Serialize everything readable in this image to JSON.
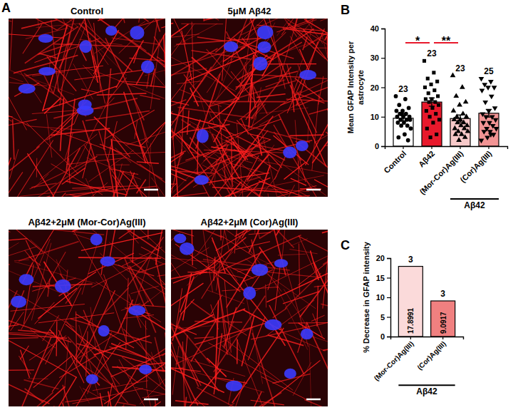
{
  "image_panels": {
    "letter": "A",
    "titles": [
      "Control",
      "5μM Aβ42",
      "Aβ42+2μM (Mor-Cor)Ag(III)",
      "Aβ42+2μM (Cor)Ag(III)"
    ]
  },
  "chart_data": [
    {
      "panel": "B",
      "type": "bar",
      "y_label": "Mean GFAP Intensity per astrocyte",
      "categories": [
        "Control",
        "Aβ42",
        "(Mor-Cor)Ag(III)",
        "(Cor)Ag(III)"
      ],
      "values": [
        9.5,
        15,
        9.4,
        11.2
      ],
      "errors": [
        0.9,
        1.4,
        1.2,
        1.3
      ],
      "colors": [
        "#ffffff",
        "#e8192c",
        "#f7c9c9",
        "#f29494"
      ],
      "n_labels": [
        23,
        23,
        23,
        25
      ],
      "points": [
        {
          "marker": "circle",
          "color": "#000000",
          "values": [
            17,
            16,
            14,
            13,
            12,
            12,
            11,
            11,
            10,
            10,
            10,
            9,
            9,
            9,
            8,
            8,
            7,
            7,
            6,
            4,
            3,
            2,
            11
          ]
        },
        {
          "marker": "square",
          "color": "#000000",
          "values": [
            29,
            25,
            23,
            22,
            21,
            20,
            19,
            18,
            17,
            16,
            16,
            15,
            15,
            14,
            13,
            12,
            11,
            10,
            9,
            8,
            6,
            4,
            3
          ]
        },
        {
          "marker": "triangle",
          "color": "#000000",
          "values": [
            24,
            20,
            17,
            15,
            14,
            12,
            11,
            10,
            10,
            9,
            9,
            8,
            8,
            7,
            7,
            6,
            6,
            5,
            5,
            4,
            4,
            3,
            2
          ]
        },
        {
          "marker": "triangle-down",
          "color": "#000000",
          "values": [
            23,
            22,
            21,
            20,
            20,
            19,
            17,
            15,
            13,
            12,
            11,
            10,
            10,
            9,
            8,
            8,
            7,
            6,
            6,
            5,
            5,
            4,
            3,
            2,
            4
          ]
        }
      ],
      "significance": [
        {
          "from": 0,
          "to": 1,
          "label": "*"
        },
        {
          "from": 1,
          "to": 2,
          "label": "**"
        }
      ],
      "group_label": {
        "label": "Aβ42",
        "from": 2,
        "to": 3
      },
      "ylim": [
        0,
        40
      ],
      "yticks": [
        0,
        10,
        20,
        30,
        40
      ]
    },
    {
      "panel": "C",
      "type": "bar",
      "y_label": "% Decrease in GFAP intensity",
      "categories": [
        "(Mor-Cor)Ag(III)",
        "(Cor)Ag(III)"
      ],
      "values": [
        17.8991,
        9.0917
      ],
      "colors": [
        "#fbdada",
        "#f08080"
      ],
      "data_labels": true,
      "n_labels": [
        3,
        3
      ],
      "group_label": {
        "label": "Aβ42",
        "from": 0,
        "to": 1
      },
      "ylim": [
        0,
        20
      ],
      "yticks": [
        0,
        5,
        10,
        15,
        20
      ]
    }
  ]
}
